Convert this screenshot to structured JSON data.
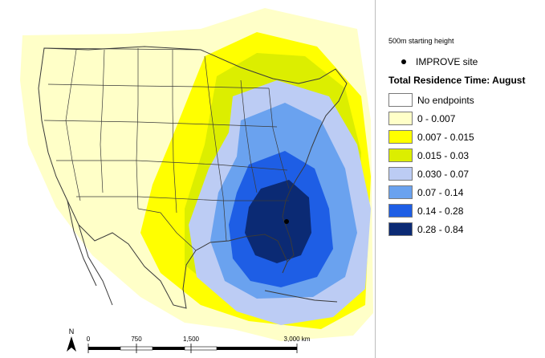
{
  "legend": {
    "starting_height": "500m starting height",
    "site_label": "IMPROVE site",
    "title": "Total Residence Time: August",
    "classes": [
      {
        "label": "No endpoints",
        "color": "#ffffff"
      },
      {
        "label": "0 - 0.007",
        "color": "#ffffc8"
      },
      {
        "label": "0.007 - 0.015",
        "color": "#ffff00"
      },
      {
        "label": "0.015 - 0.03",
        "color": "#dcee00"
      },
      {
        "label": "0.030 - 0.07",
        "color": "#bcccf4"
      },
      {
        "label": "0.07 - 0.14",
        "color": "#6aa2ef"
      },
      {
        "label": "0.14 - 0.28",
        "color": "#1e5ee5"
      },
      {
        "label": "0.28 - 0.84",
        "color": "#0b2a74"
      }
    ]
  },
  "scale_bar": {
    "ticks": [
      "0",
      "750",
      "1,500",
      "3,000 km"
    ]
  },
  "north_arrow": {
    "label": "N"
  },
  "colors": {
    "state_border": "#3a3a3a",
    "site_marker": "#000000"
  }
}
